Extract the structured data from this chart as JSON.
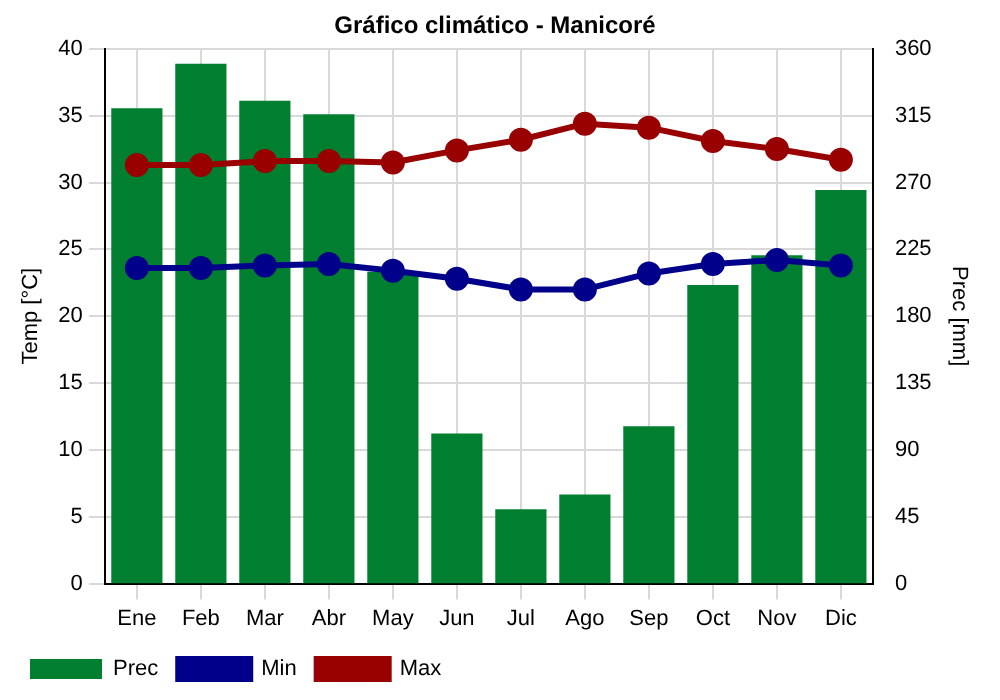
{
  "chart_data": {
    "type": "bar",
    "title": "Gráfico climático - Manicoré",
    "ylabel": "Temp [°C]",
    "y2label": "Prec [mm]",
    "categories": [
      "Ene",
      "Feb",
      "Mar",
      "Abr",
      "May",
      "Jun",
      "Jul",
      "Ago",
      "Sep",
      "Oct",
      "Nov",
      "Dic"
    ],
    "series": [
      {
        "name": "Prec",
        "axis": "y2",
        "color": "#007f31",
        "values": [
          320,
          350,
          325,
          316,
          210,
          101,
          50,
          60,
          106,
          201,
          221,
          265
        ]
      },
      {
        "name": "Min",
        "type": "line",
        "axis": "y",
        "color": "#00008b",
        "values": [
          23.6,
          23.6,
          23.8,
          23.9,
          23.4,
          22.8,
          22.0,
          22.0,
          23.2,
          23.9,
          24.2,
          23.8
        ]
      },
      {
        "name": "Max",
        "type": "line",
        "axis": "y",
        "color": "#990000",
        "values": [
          31.3,
          31.3,
          31.6,
          31.6,
          31.5,
          32.4,
          33.2,
          34.4,
          34.1,
          33.1,
          32.5,
          31.7
        ]
      }
    ],
    "ylim": [
      0,
      40
    ],
    "yticks": [
      0,
      5,
      10,
      15,
      20,
      25,
      30,
      35,
      40
    ],
    "y2lim": [
      0,
      360
    ],
    "y2ticks": [
      0,
      45,
      90,
      135,
      180,
      225,
      270,
      315,
      360
    ],
    "grid": true,
    "legend": "bottom left",
    "marker": "circle",
    "line_style": "solid"
  }
}
